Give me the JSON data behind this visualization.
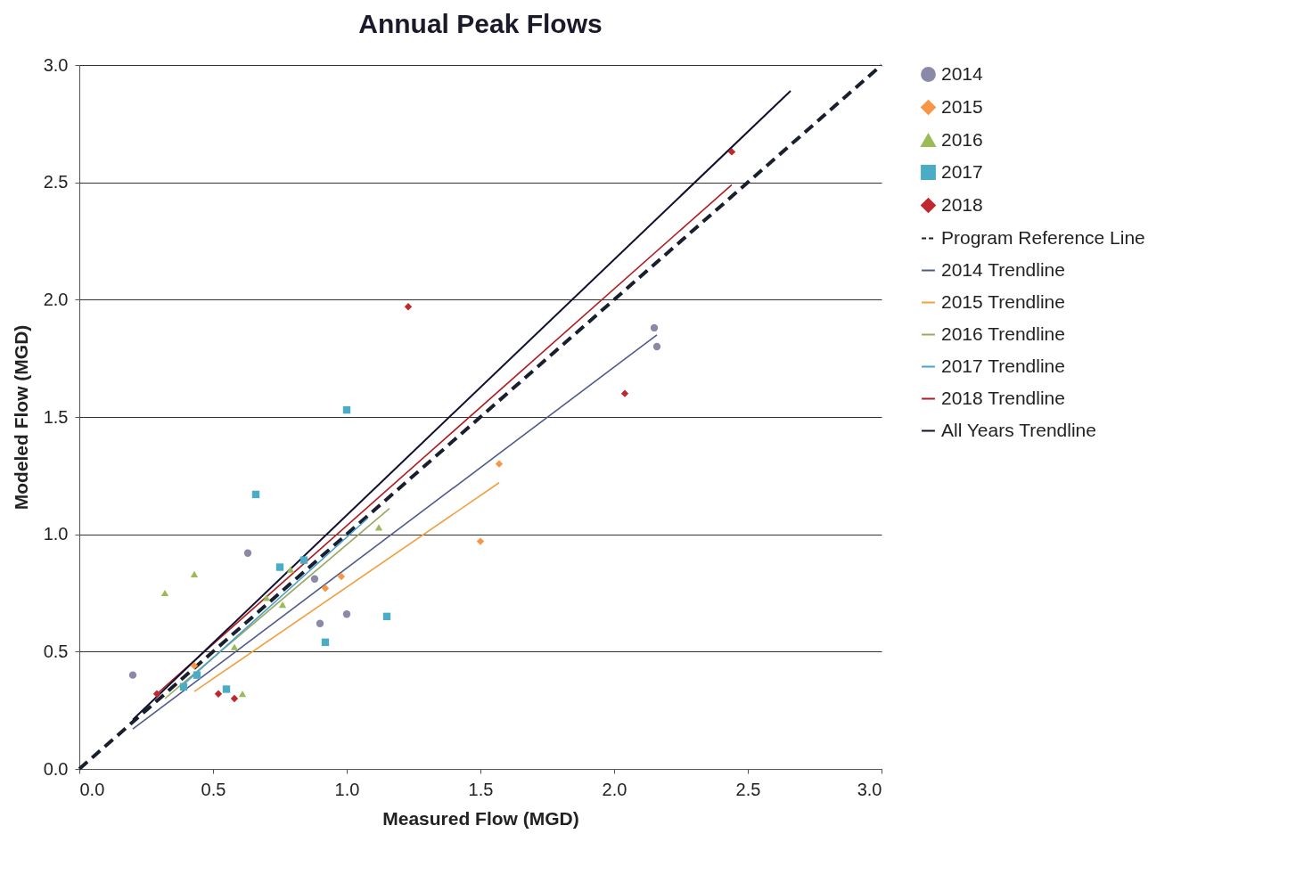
{
  "chart_data": {
    "type": "scatter",
    "title": "Annual Peak Flows",
    "xlabel": "Measured Flow (MGD)",
    "ylabel": "Modeled Flow (MGD)",
    "xlim": [
      0,
      3
    ],
    "ylim": [
      0,
      3
    ],
    "xticks": [
      {
        "value": 0,
        "label": "0.0"
      },
      0.5,
      {
        "value": 1,
        "label": "1.0"
      },
      1.5,
      {
        "value": 2,
        "label": "2.0"
      },
      2.5,
      {
        "value": 3,
        "label": "3.0"
      }
    ],
    "yticks": [
      {
        "value": 0,
        "label": "0.0"
      },
      0.5,
      {
        "value": 1,
        "label": "1.0"
      },
      1.5,
      {
        "value": 2,
        "label": "2.0"
      },
      2.5,
      {
        "value": 3,
        "label": "3.0"
      }
    ],
    "grid": "y",
    "legend": "right",
    "series": [
      {
        "name": "2014",
        "marker": "circle",
        "color": "#8a8aa8",
        "x": [
          0.2,
          0.63,
          0.88,
          0.9,
          1.0,
          2.15,
          2.16
        ],
        "values": [
          0.4,
          0.92,
          0.81,
          0.62,
          0.66,
          1.88,
          1.8
        ]
      },
      {
        "name": "2015",
        "marker": "diamond",
        "color": "#f79646",
        "x": [
          0.43,
          0.92,
          0.98,
          1.5,
          1.57
        ],
        "values": [
          0.44,
          0.77,
          0.82,
          0.97,
          1.3
        ]
      },
      {
        "name": "2016",
        "marker": "triangle",
        "color": "#9bbb59",
        "x": [
          0.32,
          0.43,
          0.7,
          0.79,
          0.76,
          0.58,
          0.61,
          1.12
        ],
        "values": [
          0.75,
          0.83,
          0.73,
          0.85,
          0.7,
          0.52,
          0.32,
          1.03
        ]
      },
      {
        "name": "2017",
        "marker": "square",
        "color": "#4bacc6",
        "x": [
          1.0,
          0.66,
          0.75,
          0.84,
          1.15,
          0.92,
          0.55,
          0.44,
          0.39
        ],
        "values": [
          1.53,
          1.17,
          0.86,
          0.89,
          0.65,
          0.54,
          0.34,
          0.4,
          0.35
        ]
      },
      {
        "name": "2018",
        "marker": "diamond",
        "color": "#c0282d",
        "x": [
          2.44,
          1.23,
          2.04,
          0.29,
          0.52,
          0.58
        ],
        "values": [
          2.63,
          1.97,
          1.6,
          0.32,
          0.32,
          0.3
        ]
      },
      {
        "name": "Program Reference Line",
        "type": "line",
        "line_style": "dashed",
        "color": "#1a1f2e",
        "x": [
          0,
          3
        ],
        "values": [
          0,
          3
        ]
      },
      {
        "name": "2014 Trendline",
        "type": "line",
        "line_style": "solid",
        "color": "#4f5b8a",
        "x": [
          0.2,
          2.16
        ],
        "values": [
          0.17,
          1.85
        ]
      },
      {
        "name": "2015 Trendline",
        "type": "line",
        "line_style": "solid",
        "color": "#f0a040",
        "x": [
          0.43,
          1.57
        ],
        "values": [
          0.33,
          1.22
        ]
      },
      {
        "name": "2016 Trendline",
        "type": "line",
        "line_style": "solid",
        "color": "#9aa860",
        "x": [
          0.32,
          1.16
        ],
        "values": [
          0.3,
          1.11
        ]
      },
      {
        "name": "2017 Trendline",
        "type": "line",
        "line_style": "solid",
        "color": "#4aa0d0",
        "x": [
          0.39,
          1.08
        ],
        "values": [
          0.36,
          1.07
        ]
      },
      {
        "name": "2018 Trendline",
        "type": "line",
        "line_style": "solid",
        "color": "#b01c20",
        "x": [
          0.29,
          2.44
        ],
        "values": [
          0.32,
          2.49
        ]
      },
      {
        "name": "All Years Trendline",
        "type": "line",
        "line_style": "solid",
        "color": "#101030",
        "x": [
          0.2,
          2.66
        ],
        "values": [
          0.21,
          2.89
        ]
      }
    ]
  }
}
